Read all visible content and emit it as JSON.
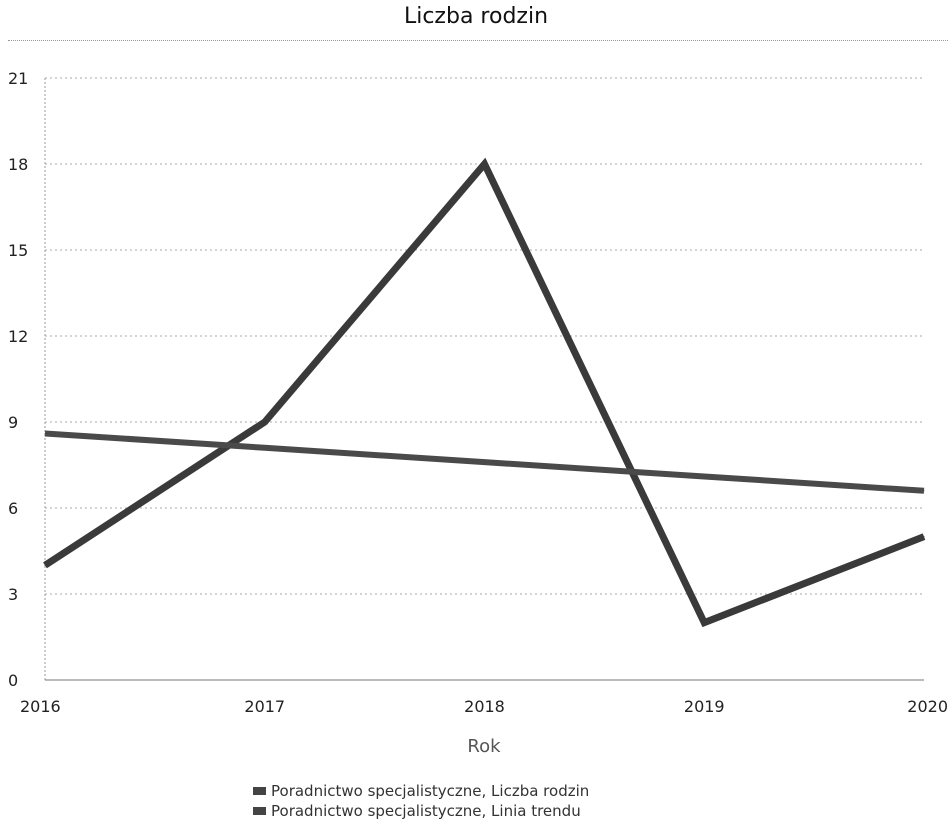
{
  "chart_data": {
    "type": "line",
    "title": "Liczba rodzin",
    "xlabel": "Rok",
    "ylabel": "",
    "categories": [
      "2016",
      "2017",
      "2018",
      "2019",
      "2020"
    ],
    "ylim": [
      0,
      21
    ],
    "yticks": [
      0,
      3,
      6,
      9,
      12,
      15,
      18,
      21
    ],
    "grid": true,
    "legend_position": "bottom",
    "series": [
      {
        "name": "Poradnictwo specjalistyczne, Liczba rodzin",
        "values": [
          4,
          9,
          18,
          2,
          5
        ],
        "color": "#3a3a3a"
      },
      {
        "name": "Poradnictwo specjalistyczne, Linia trendu",
        "values": [
          8.6,
          8.1,
          7.6,
          7.1,
          6.6
        ],
        "color": "#4a4a4a"
      }
    ]
  }
}
